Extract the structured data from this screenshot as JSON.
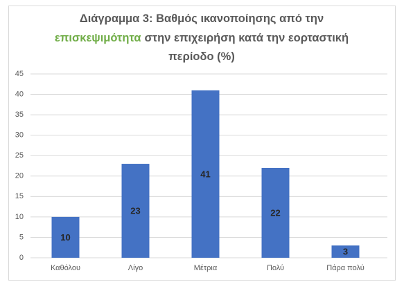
{
  "chart_data": {
    "type": "bar",
    "title": [
      {
        "text": "Διάγραμμα 3: Βαθμός ικανοποίησης από την",
        "color": "#595959"
      },
      {
        "text": "επισκεψιμότητα",
        "color": "#70ad47"
      },
      {
        "text": "στην επιχειρήση κατά την εορταστική",
        "color": "#595959"
      },
      {
        "text": "περίοδο (%)",
        "color": "#595959"
      }
    ],
    "categories": [
      "Καθόλου",
      "Λίγο",
      "Μέτρια",
      "Πολύ",
      "Πάρα πολύ"
    ],
    "values": [
      10,
      23,
      41,
      22,
      3
    ],
    "color": "#4472c4",
    "ylim": [
      0,
      45
    ],
    "yticks": [
      0,
      5,
      10,
      15,
      20,
      25,
      30,
      35,
      40,
      45
    ],
    "grid": true
  }
}
